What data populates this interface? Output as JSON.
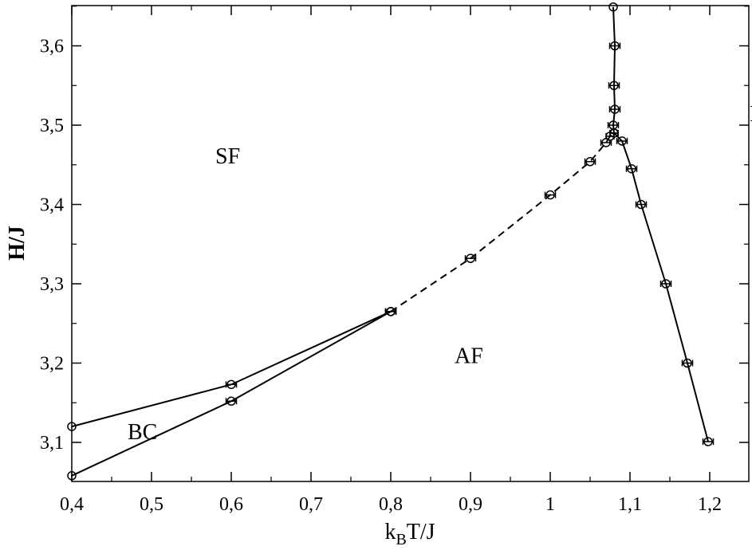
{
  "chart_data": {
    "type": "scatter",
    "title": "",
    "xlabel": {
      "main": "k",
      "sub": "B",
      "rest": "T/J"
    },
    "ylabel": "H/J",
    "xlim": [
      0.4,
      1.25
    ],
    "ylim": [
      3.05,
      3.65
    ],
    "grid": false,
    "x_ticks": [
      {
        "value": 0.4,
        "label": "0,4"
      },
      {
        "value": 0.5,
        "label": "0,5"
      },
      {
        "value": 0.6,
        "label": "0,6"
      },
      {
        "value": 0.7,
        "label": "0,7"
      },
      {
        "value": 0.8,
        "label": "0,8"
      },
      {
        "value": 0.9,
        "label": "0,9"
      },
      {
        "value": 1.0,
        "label": "1"
      },
      {
        "value": 1.1,
        "label": "1,1"
      },
      {
        "value": 1.2,
        "label": "1,2"
      }
    ],
    "y_ticks": [
      {
        "value": 3.1,
        "label": "3,1"
      },
      {
        "value": 3.2,
        "label": "3,2"
      },
      {
        "value": 3.3,
        "label": "3,3"
      },
      {
        "value": 3.4,
        "label": "3,4"
      },
      {
        "value": 3.5,
        "label": "3,5"
      },
      {
        "value": 3.6,
        "label": "3,6"
      }
    ],
    "series": [
      {
        "line": "solid",
        "points": [
          [
            0.4,
            3.12
          ],
          [
            0.6,
            3.173
          ],
          [
            0.8,
            3.265
          ]
        ],
        "xerr": [
          0,
          0.013,
          0.013
        ]
      },
      {
        "line": "solid",
        "points": [
          [
            0.4,
            3.058
          ],
          [
            0.6,
            3.152
          ],
          [
            0.8,
            3.265
          ]
        ],
        "xerr": [
          0,
          0.013,
          0.013
        ]
      },
      {
        "line": "dashed",
        "points": [
          [
            0.8,
            3.265
          ],
          [
            0.9,
            3.332
          ],
          [
            1.0,
            3.412
          ],
          [
            1.05,
            3.454
          ],
          [
            1.07,
            3.478
          ],
          [
            1.075,
            3.486
          ],
          [
            1.08,
            3.49
          ]
        ],
        "xerr": [
          0.013,
          0.013,
          0.013,
          0.013,
          0.013,
          0.01,
          0.01
        ]
      },
      {
        "line": "solid",
        "points": [
          [
            1.079,
            3.649
          ],
          [
            1.081,
            3.6
          ],
          [
            1.08,
            3.55
          ],
          [
            1.081,
            3.52
          ],
          [
            1.079,
            3.5
          ],
          [
            1.08,
            3.49
          ]
        ],
        "xerr": [
          0,
          0.013,
          0.013,
          0.013,
          0.013,
          0.01
        ]
      },
      {
        "line": "solid",
        "points": [
          [
            1.08,
            3.49
          ],
          [
            1.09,
            3.48
          ],
          [
            1.102,
            3.445
          ],
          [
            1.114,
            3.4
          ],
          [
            1.145,
            3.3
          ],
          [
            1.172,
            3.2
          ],
          [
            1.198,
            3.101
          ]
        ],
        "xerr": [
          0.01,
          0.013,
          0.013,
          0.013,
          0.013,
          0.013,
          0.013
        ]
      }
    ],
    "annotations": [
      {
        "text": "SF",
        "x": 0.58,
        "y": 3.452
      },
      {
        "text": "P",
        "x": 1.25,
        "y": 3.505
      },
      {
        "text": "AF",
        "x": 0.88,
        "y": 3.2
      },
      {
        "text": "BC",
        "x": 0.47,
        "y": 3.104
      }
    ]
  }
}
